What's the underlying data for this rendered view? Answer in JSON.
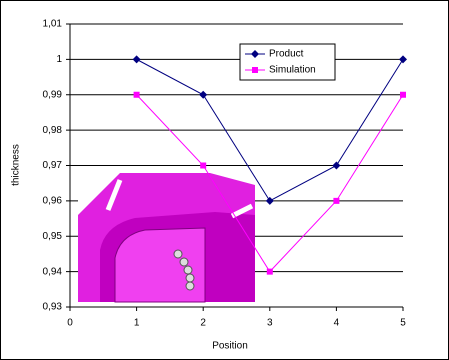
{
  "chart_data": {
    "type": "line",
    "x": [
      1,
      2,
      3,
      4,
      5
    ],
    "series": [
      {
        "name": "Product",
        "color": "#000080",
        "marker": "diamond",
        "values": [
          1,
          0.99,
          0.96,
          0.97,
          1
        ]
      },
      {
        "name": "Simulation",
        "color": "#ff00ff",
        "marker": "square",
        "values": [
          0.99,
          0.97,
          0.94,
          0.96,
          0.99
        ]
      }
    ],
    "xlabel": "Position",
    "ylabel": "thickness",
    "xlim": [
      0,
      5
    ],
    "xticks": [
      0,
      1,
      2,
      3,
      4,
      5
    ],
    "ylim": [
      0.93,
      1.01
    ],
    "yticks": [
      {
        "value": 0.93,
        "label": "0,93"
      },
      {
        "value": 0.94,
        "label": "0,94"
      },
      {
        "value": 0.95,
        "label": "0,95"
      },
      {
        "value": 0.96,
        "label": "0,96"
      },
      {
        "value": 0.97,
        "label": "0,97"
      },
      {
        "value": 0.98,
        "label": "0,98"
      },
      {
        "value": 0.99,
        "label": "0,99"
      },
      1,
      {
        "value": 1.01,
        "label": "1,01"
      }
    ],
    "grid": true,
    "legend": "top-right"
  }
}
